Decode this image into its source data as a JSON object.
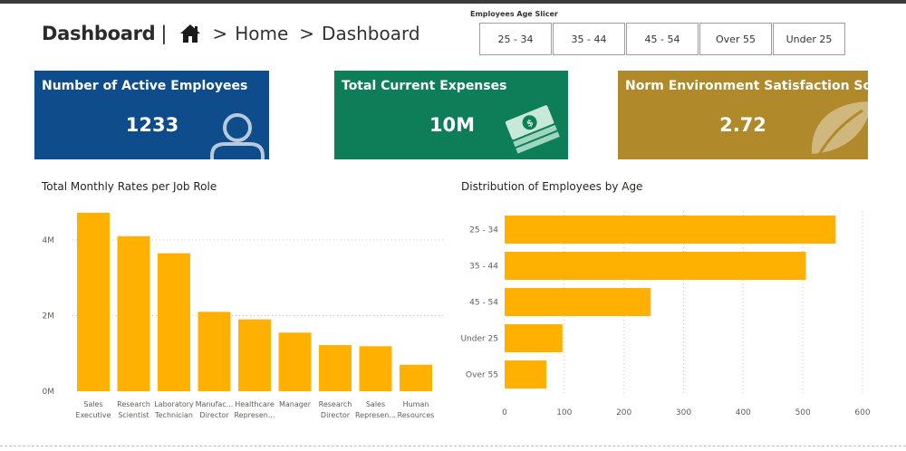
{
  "header": {
    "title": "Dashboard",
    "separator": "|",
    "crumb_sep": ">",
    "breadcrumbs": [
      "Home",
      "Dashboard"
    ]
  },
  "slicer": {
    "title": "Employees Age Slicer",
    "options": [
      "25 - 34",
      "35 - 44",
      "45 - 54",
      "Over 55",
      "Under 25"
    ]
  },
  "kpis": [
    {
      "label": "Number of Active Employees",
      "value": "1233",
      "icon": "person-icon",
      "color": "#0f4c8c"
    },
    {
      "label": "Total Current Expenses",
      "value": "10M",
      "icon": "money-icon",
      "color": "#0d7e57"
    },
    {
      "label": "Norm Environment Satisfaction Score",
      "value": "2.72",
      "icon": "leaf-icon",
      "color": "#b0892b"
    }
  ],
  "colors": {
    "bar": "#ffb000",
    "grid": "#c8c6c4"
  },
  "chart_data": [
    {
      "type": "bar",
      "title": "Total Monthly Rates per Job Role",
      "categories": [
        [
          "Sales",
          "Executive"
        ],
        [
          "Research",
          "Scientist"
        ],
        [
          "Laboratory",
          "Technician"
        ],
        [
          "Manufac...",
          "Director"
        ],
        [
          "Healthcare",
          "Represen..."
        ],
        [
          "Manager"
        ],
        [
          "Research",
          "Director"
        ],
        [
          "Sales",
          "Represen..."
        ],
        [
          "Human",
          "Resources"
        ]
      ],
      "values": [
        4720000,
        4100000,
        3650000,
        2100000,
        1900000,
        1550000,
        1220000,
        1190000,
        700000
      ],
      "ylim": [
        0,
        4000000
      ],
      "yticks": [
        {
          "v": 0,
          "label": "0M"
        },
        {
          "v": 2000000,
          "label": "2M"
        },
        {
          "v": 4000000,
          "label": "4M"
        }
      ],
      "grid": true
    },
    {
      "type": "bar",
      "orientation": "horizontal",
      "title": "Distribution of Employees by Age",
      "categories": [
        "25 - 34",
        "35 - 44",
        "45 - 54",
        "Under 25",
        "Over 55"
      ],
      "values": [
        555,
        505,
        245,
        97,
        70
      ],
      "xlim": [
        0,
        600
      ],
      "xticks": [
        0,
        100,
        200,
        300,
        400,
        500,
        600
      ],
      "grid": true
    }
  ]
}
